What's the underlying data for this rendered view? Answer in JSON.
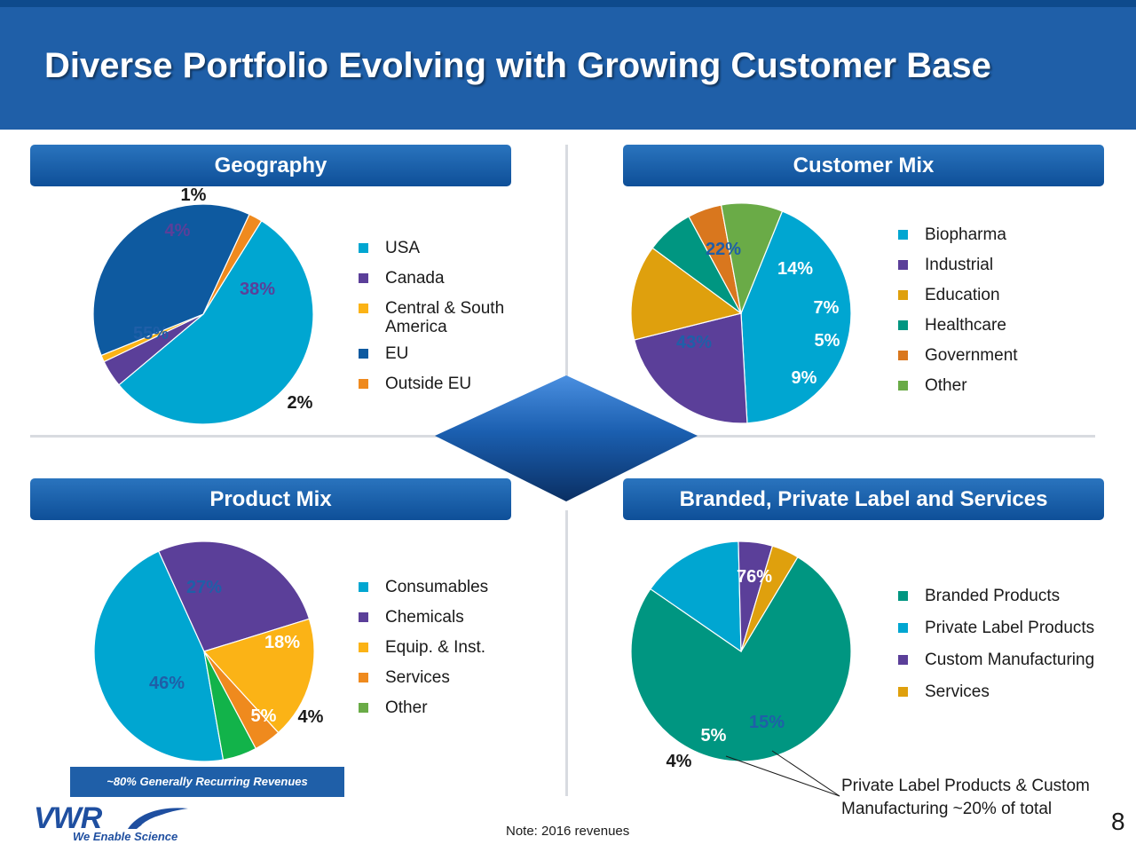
{
  "title": "Diverse Portfolio Evolving with Growing Customer Base",
  "panels": {
    "geography": "Geography",
    "customer": "Customer Mix",
    "product": "Product Mix",
    "branded": "Branded, Private Label and Services"
  },
  "colors": {
    "header": "#1f5fa8",
    "cyan": "#00a6d1",
    "purple": "#5b3f99",
    "yellow": "#fbb316",
    "navy": "#0e5aa0",
    "orange": "#ef8a1e",
    "teal": "#009681",
    "gold": "#dfa00d",
    "dark_orange": "#d9771e",
    "green": "#6aab47",
    "bright_green": "#12b34a"
  },
  "chart_data": [
    {
      "type": "pie",
      "title": "Geography",
      "labels": [
        "USA",
        "Canada",
        "Central & South America",
        "EU",
        "Outside EU"
      ],
      "legend_lines": [
        [
          "USA"
        ],
        [
          "Canada"
        ],
        [
          "Central & South",
          "America"
        ],
        [
          "EU"
        ],
        [
          "Outside EU"
        ]
      ],
      "values": [
        55,
        4,
        1,
        38,
        2
      ],
      "value_labels": [
        "55%",
        "4%",
        "1%",
        "38%",
        "2%"
      ],
      "colors": [
        "#00a6d1",
        "#5b3f99",
        "#fbb316",
        "#0e5aa0",
        "#ef8a1e"
      ],
      "legend_position": "right"
    },
    {
      "type": "pie",
      "title": "Customer Mix",
      "labels": [
        "Biopharma",
        "Industrial",
        "Education",
        "Healthcare",
        "Government",
        "Other"
      ],
      "legend_lines": [
        [
          "Biopharma"
        ],
        [
          "Industrial"
        ],
        [
          "Education"
        ],
        [
          "Healthcare"
        ],
        [
          "Government"
        ],
        [
          "Other"
        ]
      ],
      "values": [
        43,
        22,
        14,
        7,
        5,
        9
      ],
      "value_labels": [
        "43%",
        "22%",
        "14%",
        "7%",
        "5%",
        "9%"
      ],
      "colors": [
        "#00a6d1",
        "#5b3f99",
        "#dfa00d",
        "#009681",
        "#d9771e",
        "#6aab47"
      ],
      "legend_position": "right"
    },
    {
      "type": "pie",
      "title": "Product Mix",
      "labels": [
        "Consumables",
        "Chemicals",
        "Equip. & Inst.",
        "Services",
        "Other"
      ],
      "legend_lines": [
        [
          "Consumables"
        ],
        [
          "Chemicals"
        ],
        [
          "Equip. & Inst."
        ],
        [
          "Services"
        ],
        [
          "Other"
        ]
      ],
      "values": [
        46,
        27,
        18,
        4,
        5
      ],
      "value_labels": [
        "46%",
        "27%",
        "18%",
        "4%",
        "5%"
      ],
      "colors": [
        "#00a6d1",
        "#5b3f99",
        "#fbb316",
        "#ef8a1e",
        "#12b34a"
      ],
      "legend_colors": [
        "#00a6d1",
        "#5b3f99",
        "#fbb316",
        "#ef8a1e",
        "#6aab47"
      ],
      "legend_position": "right"
    },
    {
      "type": "pie",
      "title": "Branded, Private Label and Services",
      "labels": [
        "Branded Products",
        "Private Label Products",
        "Custom Manufacturing",
        "Services"
      ],
      "legend_lines": [
        [
          "Branded Products"
        ],
        [
          "Private Label Products"
        ],
        [
          "Custom Manufacturing"
        ],
        [
          "Services"
        ]
      ],
      "values": [
        76,
        15,
        5,
        4
      ],
      "value_labels": [
        "76%",
        "15%",
        "5%",
        "4%"
      ],
      "colors": [
        "#009681",
        "#00a6d1",
        "#5b3f99",
        "#dfa00d"
      ],
      "legend_position": "right"
    }
  ],
  "annotations": {
    "recurring": "~80% Generally Recurring Revenues",
    "callout_line1": "Private Label Products & Custom",
    "callout_line2": "Manufacturing ~20% of total",
    "footnote": "Note: 2016 revenues",
    "page_number": "8"
  },
  "logo": {
    "name": "VWR",
    "tagline": "We Enable Science"
  }
}
